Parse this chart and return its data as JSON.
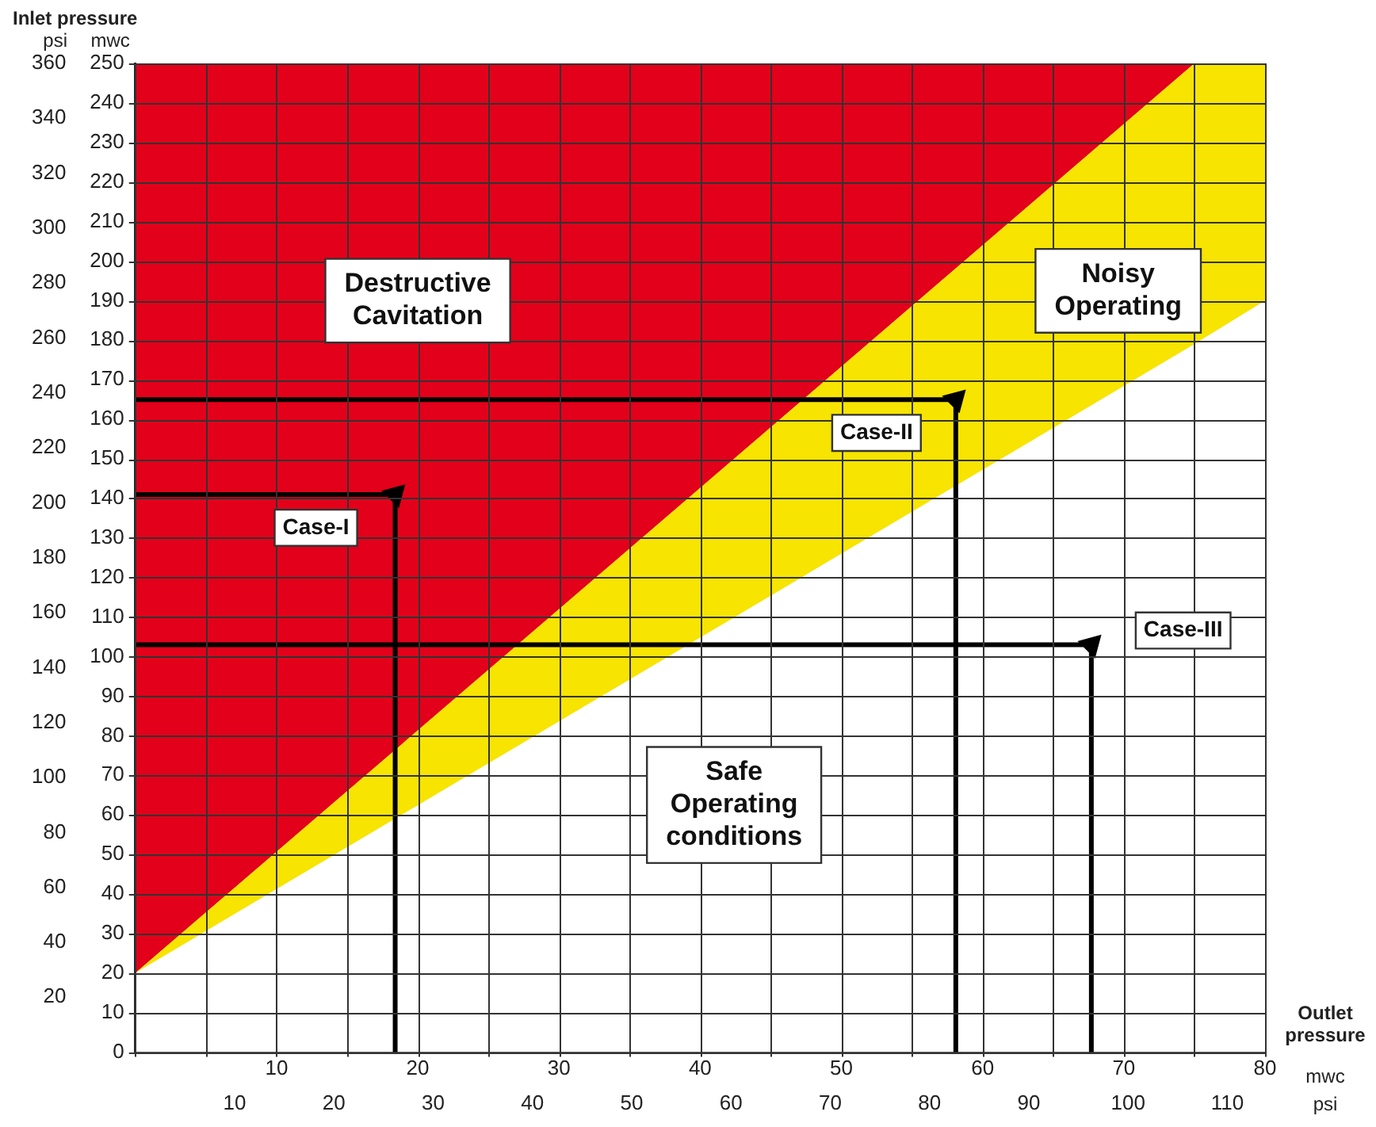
{
  "chart_data": {
    "type": "area",
    "xlabel": "mwc",
    "x2label": "psi",
    "ylabel": "mwc",
    "y2label": "psi",
    "xlim": [
      0,
      80
    ],
    "xticks": [
      {
        "value": 0,
        "label": null
      },
      {
        "value": 5,
        "label": null
      },
      10,
      {
        "value": 15,
        "label": null
      },
      20,
      {
        "value": 25,
        "label": null
      },
      30,
      {
        "value": 35,
        "label": null
      },
      40,
      {
        "value": 45,
        "label": null
      },
      50,
      {
        "value": 55,
        "label": null
      },
      60,
      {
        "value": 65,
        "label": null
      },
      70,
      {
        "value": 75,
        "label": null
      },
      80
    ],
    "x2lim": [
      0,
      113.8
    ],
    "x2ticks": [
      10,
      20,
      30,
      40,
      50,
      60,
      70,
      80,
      90,
      100,
      110
    ],
    "ylim": [
      0,
      250
    ],
    "yticks": [
      0,
      10,
      20,
      30,
      40,
      50,
      60,
      70,
      80,
      90,
      100,
      110,
      120,
      130,
      140,
      150,
      160,
      170,
      180,
      190,
      200,
      210,
      220,
      230,
      240,
      250
    ],
    "y2lim": [
      0,
      360
    ],
    "y2ticks": [
      20,
      40,
      60,
      80,
      100,
      120,
      140,
      160,
      180,
      200,
      220,
      240,
      260,
      280,
      300,
      320,
      340,
      360
    ],
    "grid": true,
    "legend": false,
    "stacked": true,
    "x": [
      0,
      75,
      80
    ],
    "series": [
      {
        "name": "Safe Operating conditions",
        "color": "#ffffff",
        "values": [
          20,
          179,
          190
        ]
      },
      {
        "name": "Noisy Operating",
        "color": "#f7e400",
        "values": [
          0,
          71,
          60
        ]
      },
      {
        "name": "Destructive Cavitation",
        "color": "#e2001a",
        "x": [
          0,
          75
        ],
        "values": [
          230,
          0
        ]
      },
      {
        "type": "line",
        "color": "#000000",
        "x": [
          0,
          18.4,
          18.4
        ],
        "values": [
          141,
          141,
          0
        ]
      },
      {
        "type": "line",
        "color": "#000000",
        "x": [
          0,
          58.1,
          58.1
        ],
        "values": [
          165,
          165,
          0
        ]
      },
      {
        "type": "line",
        "color": "#000000",
        "x": [
          0,
          67.7,
          67.7
        ],
        "values": [
          103,
          103,
          0
        ]
      }
    ],
    "annotations": [
      "Inlet pressure",
      "Outlet pressure",
      {
        "text": "Case-I",
        "x": 18.4,
        "y": 141
      },
      {
        "text": "Case-II",
        "x": 58.1,
        "y": 165
      },
      {
        "text": "Case-III",
        "x": 67.7,
        "y": 103
      }
    ]
  }
}
